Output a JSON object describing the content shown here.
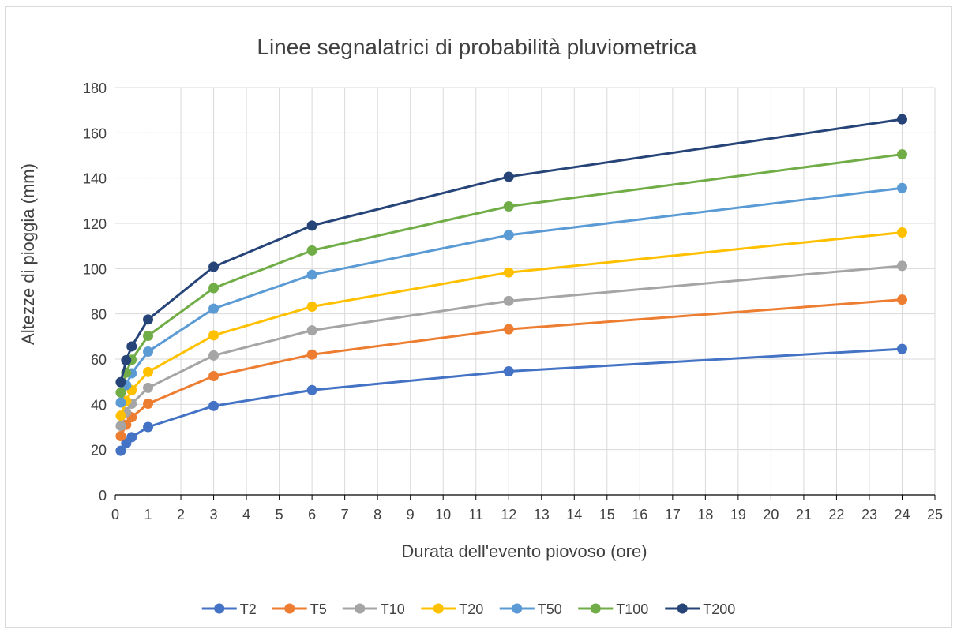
{
  "chart_data": {
    "type": "line",
    "title": "Linee segnalatrici di probabilità pluviometrica",
    "xlabel": "Durata dell'evento piovoso (ore)",
    "ylabel": "Altezze di pioggia (mm)",
    "xlim": [
      0,
      25
    ],
    "ylim": [
      0,
      180
    ],
    "x_ticks": [
      "0",
      "1",
      "2",
      "3",
      "4",
      "5",
      "6",
      "7",
      "8",
      "9",
      "10",
      "11",
      "12",
      "13",
      "14",
      "15",
      "16",
      "17",
      "18",
      "19",
      "20",
      "21",
      "22",
      "23",
      "24",
      "25"
    ],
    "y_ticks": [
      "0",
      "20",
      "40",
      "60",
      "80",
      "100",
      "120",
      "140",
      "160",
      "180"
    ],
    "grid": true,
    "legend_position": "bottom",
    "x": [
      0.167,
      0.333,
      0.5,
      1,
      3,
      6,
      12,
      24
    ],
    "series": [
      {
        "name": "T2",
        "color": "#4472C4",
        "values": [
          19.5,
          22.8,
          25.5,
          30,
          39.3,
          46.3,
          54.6,
          64.5
        ]
      },
      {
        "name": "T5",
        "color": "#ED7D31",
        "values": [
          26,
          31,
          34.3,
          40.3,
          52.5,
          62,
          73.2,
          86.3
        ]
      },
      {
        "name": "T10",
        "color": "#A5A5A5",
        "values": [
          30.5,
          36.5,
          40.3,
          47.3,
          61.6,
          72.7,
          85.7,
          101.2
        ]
      },
      {
        "name": "T20",
        "color": "#FFC000",
        "values": [
          35,
          41.5,
          46.3,
          54.3,
          70.5,
          83.2,
          98.3,
          116
        ]
      },
      {
        "name": "T50",
        "color": "#5B9BD5",
        "values": [
          40.8,
          48.5,
          53.7,
          63.3,
          82.3,
          97.3,
          114.8,
          135.6
        ]
      },
      {
        "name": "T100",
        "color": "#70AD47",
        "values": [
          45.2,
          54,
          59.7,
          70.3,
          91.4,
          108,
          127.5,
          150.5
        ]
      },
      {
        "name": "T200",
        "color": "#264478",
        "values": [
          49.8,
          59.5,
          65.6,
          77.5,
          100.8,
          119,
          140.6,
          166
        ]
      }
    ]
  }
}
